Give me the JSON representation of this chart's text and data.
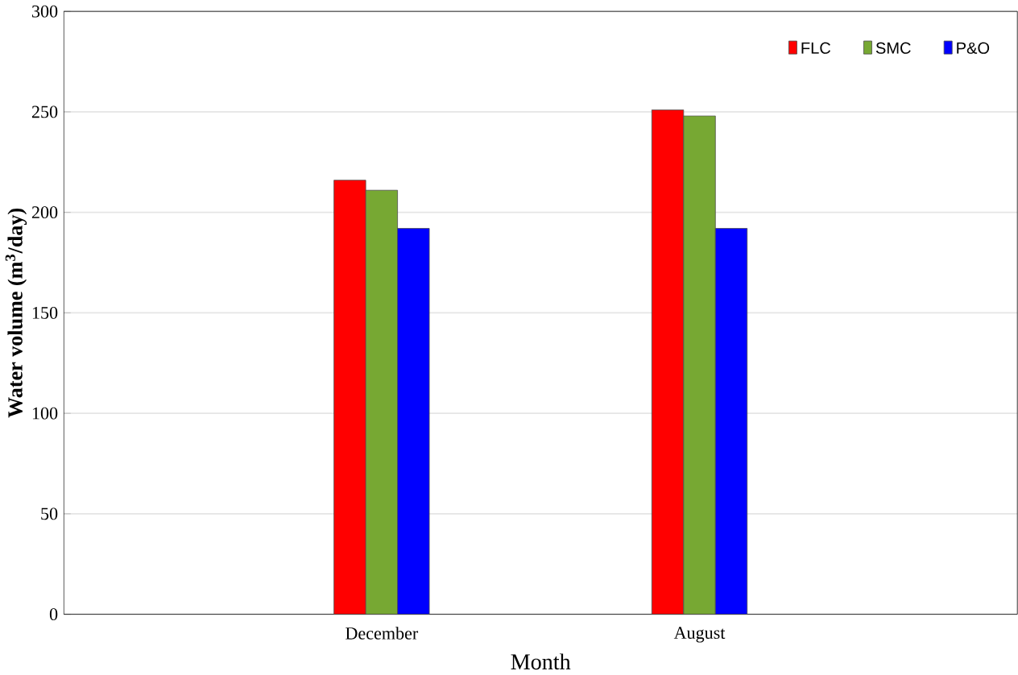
{
  "chart_data": {
    "type": "bar",
    "xlabel": "Month",
    "ylabel": "Water volume (m$^{3}$/day)",
    "categories": [
      "December",
      "August"
    ],
    "series": [
      {
        "name": "FLC",
        "color": "#ff0000",
        "values": [
          216,
          251
        ]
      },
      {
        "name": "SMC",
        "color": "#77a833",
        "values": [
          211,
          248
        ]
      },
      {
        "name": "P&O",
        "color": "#0000ff",
        "values": [
          192,
          192
        ]
      }
    ],
    "ylim": [
      0,
      300
    ],
    "yticks": [
      0,
      50,
      100,
      150,
      200,
      250,
      300
    ],
    "grid": "y",
    "legend": "top right"
  }
}
